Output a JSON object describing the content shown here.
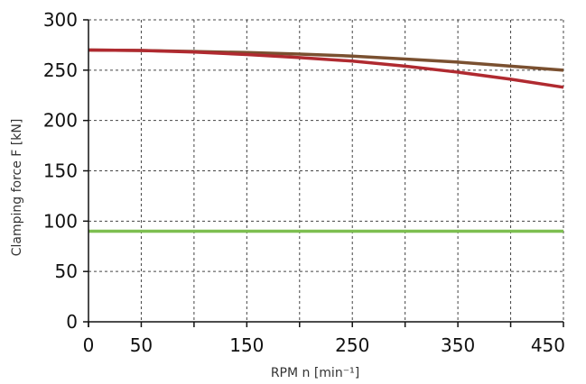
{
  "chart_data": {
    "type": "line",
    "xlabel": "RPM n [min⁻¹]",
    "ylabel": "Clamping force F [kN]",
    "xlim": [
      0,
      450
    ],
    "ylim": [
      0,
      300
    ],
    "x_ticks": [
      0,
      50,
      150,
      250,
      350,
      450
    ],
    "x_gridlines": [
      0,
      50,
      100,
      150,
      200,
      250,
      300,
      350,
      400,
      450
    ],
    "y_ticks": [
      0,
      50,
      100,
      150,
      200,
      250,
      300
    ],
    "grid": true,
    "legend": "none",
    "series": [
      {
        "color": "#7a5030",
        "x": [
          0,
          50,
          100,
          150,
          200,
          250,
          300,
          350,
          400,
          450
        ],
        "y": [
          270,
          269.5,
          268.5,
          267.5,
          266,
          264,
          261,
          258,
          254,
          250
        ]
      },
      {
        "color": "#b02a30",
        "x": [
          0,
          50,
          100,
          150,
          200,
          250,
          300,
          350,
          400,
          450
        ],
        "y": [
          270,
          269.5,
          268,
          265.5,
          262.5,
          259,
          254,
          248,
          241,
          233
        ]
      },
      {
        "color": "#7dbf50",
        "x": [
          0,
          450
        ],
        "y": [
          90,
          90
        ]
      }
    ]
  }
}
